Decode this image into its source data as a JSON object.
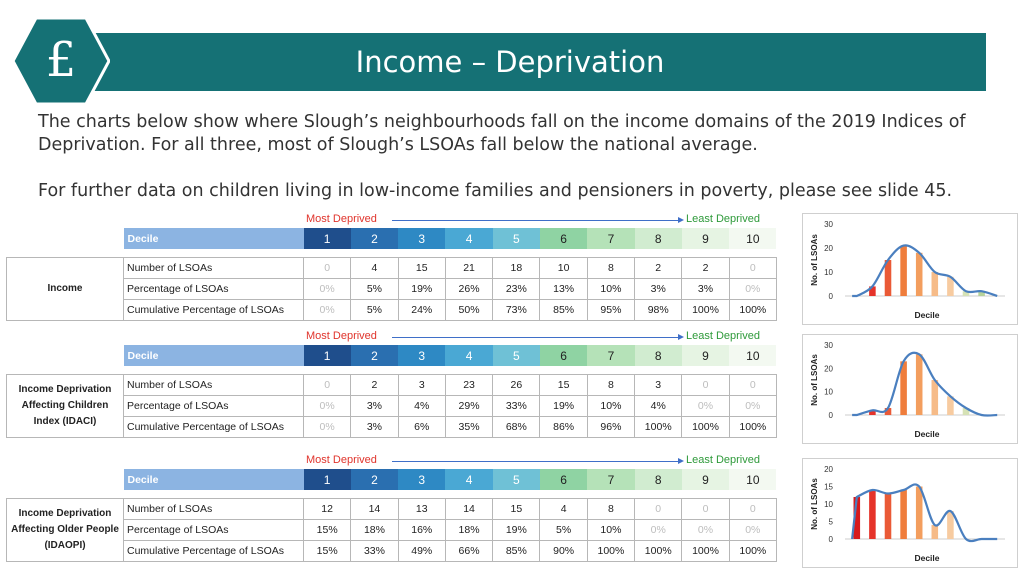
{
  "title": "Income – Deprivation",
  "icon": "pound-sign-icon",
  "intro": {
    "p1": "The charts below show where Slough’s neighbourhoods fall on the income domains of the 2019 Indices of Deprivation. For all three, most of Slough’s LSOAs fall below the national average.",
    "p2": "For further data on children living in low-income families and pensioners in poverty, please see slide 45."
  },
  "labels": {
    "most_deprived": "Most Deprived",
    "least_deprived": "Least Deprived",
    "decile": "Decile",
    "deciles": [
      "1",
      "2",
      "3",
      "4",
      "5",
      "6",
      "7",
      "8",
      "9",
      "10"
    ],
    "metric_number": "Number of LSOAs",
    "metric_pct": "Percentage of LSOAs",
    "metric_cum": "Cumulative Percentage of LSOAs"
  },
  "colors": {
    "decile_bg": [
      "#1f4e8c",
      "#2a6fb0",
      "#2e89c4",
      "#4aa8d4",
      "#6fc1d6",
      "#8fd3a3",
      "#b5e2b8",
      "#d1ecd0",
      "#e6f4e3",
      "#f3f9f1"
    ],
    "decile_fg": [
      "#ffffff",
      "#ffffff",
      "#ffffff",
      "#ffffff",
      "#ffffff",
      "#222222",
      "#222222",
      "#222222",
      "#222222",
      "#222222"
    ],
    "bars": [
      "#d7191c",
      "#e5332a",
      "#ea5a36",
      "#ef7d3c",
      "#f39e5e",
      "#f6bb88",
      "#f7cba0",
      "#d6e2b6",
      "#b6d29a",
      "#93c47d"
    ],
    "line": "#4a7fbf"
  },
  "tables": [
    {
      "group_label": "Income",
      "number": [
        "0",
        "4",
        "15",
        "21",
        "18",
        "10",
        "8",
        "2",
        "2",
        "0"
      ],
      "pct": [
        "0%",
        "5%",
        "19%",
        "26%",
        "23%",
        "13%",
        "10%",
        "3%",
        "3%",
        "0%"
      ],
      "cum": [
        "0%",
        "5%",
        "24%",
        "50%",
        "73%",
        "85%",
        "95%",
        "98%",
        "100%",
        "100%"
      ]
    },
    {
      "group_label": "Income Deprivation Affecting Children Index (IDACI)",
      "number": [
        "0",
        "2",
        "3",
        "23",
        "26",
        "15",
        "8",
        "3",
        "0",
        "0"
      ],
      "pct": [
        "0%",
        "3%",
        "4%",
        "29%",
        "33%",
        "19%",
        "10%",
        "4%",
        "0%",
        "0%"
      ],
      "cum": [
        "0%",
        "3%",
        "6%",
        "35%",
        "68%",
        "86%",
        "96%",
        "100%",
        "100%",
        "100%"
      ]
    },
    {
      "group_label": "Income Deprivation Affecting Older People (IDAOPI)",
      "number": [
        "12",
        "14",
        "13",
        "14",
        "15",
        "4",
        "8",
        "0",
        "0",
        "0"
      ],
      "pct": [
        "15%",
        "18%",
        "16%",
        "18%",
        "19%",
        "5%",
        "10%",
        "0%",
        "0%",
        "0%"
      ],
      "cum": [
        "15%",
        "33%",
        "49%",
        "66%",
        "85%",
        "90%",
        "100%",
        "100%",
        "100%",
        "100%"
      ]
    }
  ],
  "chart_data": [
    {
      "type": "bar",
      "ylabel": "No. of LSOAs",
      "xlabel": "Decile",
      "ylim": [
        0,
        30
      ],
      "yticks": [
        0,
        10,
        20,
        30
      ],
      "categories": [
        "1",
        "2",
        "3",
        "4",
        "5",
        "6",
        "7",
        "8",
        "9",
        "10"
      ],
      "values": [
        0,
        4,
        15,
        21,
        18,
        10,
        8,
        2,
        2,
        0
      ]
    },
    {
      "type": "bar",
      "ylabel": "No. of LSOAs",
      "xlabel": "Decile",
      "ylim": [
        0,
        30
      ],
      "yticks": [
        0,
        10,
        20,
        30
      ],
      "categories": [
        "1",
        "2",
        "3",
        "4",
        "5",
        "6",
        "7",
        "8",
        "9",
        "10"
      ],
      "values": [
        0,
        2,
        3,
        23,
        26,
        15,
        8,
        3,
        0,
        0
      ]
    },
    {
      "type": "bar",
      "ylabel": "No. of LSOAs",
      "xlabel": "Decile",
      "ylim": [
        0,
        20
      ],
      "yticks": [
        0,
        5,
        10,
        15,
        20
      ],
      "categories": [
        "1",
        "2",
        "3",
        "4",
        "5",
        "6",
        "7",
        "8",
        "9",
        "10"
      ],
      "values": [
        12,
        14,
        13,
        14,
        15,
        4,
        8,
        0,
        0,
        0
      ]
    }
  ]
}
